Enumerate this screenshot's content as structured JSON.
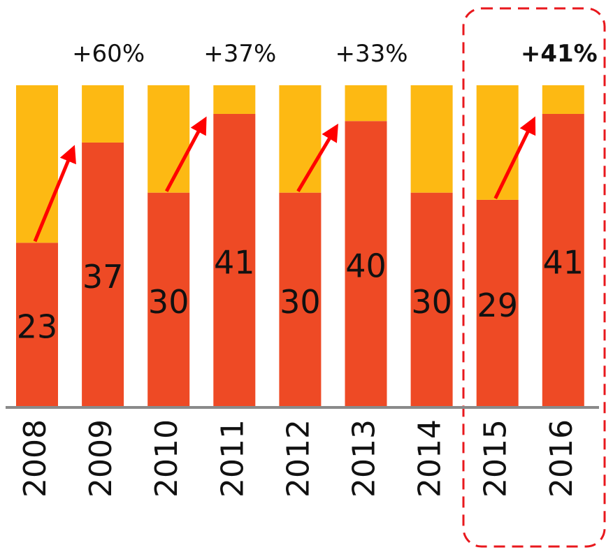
{
  "chart_data": {
    "type": "stacked_bar",
    "categories": [
      "2008",
      "2009",
      "2010",
      "2011",
      "2012",
      "2013",
      "2014",
      "2015",
      "2016"
    ],
    "series": [
      {
        "color": "#ee4a25",
        "values": [
          23,
          37,
          30,
          41,
          30,
          40,
          30,
          29,
          41
        ]
      },
      {
        "color": "#fdb913",
        "values": [
          22,
          8,
          15,
          4,
          15,
          5,
          15,
          16,
          4
        ]
      }
    ],
    "ylim": [
      0,
      45
    ],
    "annotations": [
      "+60%",
      "+37%",
      "+33%",
      "+41%"
    ]
  }
}
